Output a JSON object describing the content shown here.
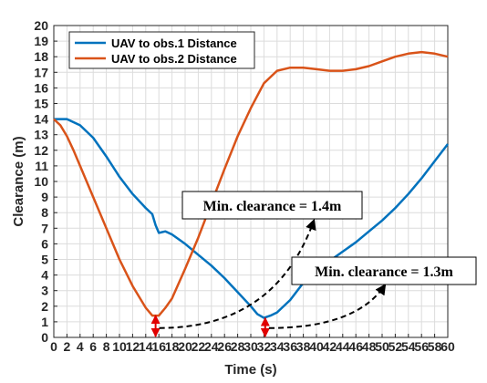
{
  "chart_data": {
    "type": "line",
    "xlabel": "Time (s)",
    "ylabel": "Clearance (m)",
    "xlim": [
      0,
      60
    ],
    "ylim": [
      0,
      20
    ],
    "xticks": [
      0,
      2,
      4,
      6,
      8,
      10,
      12,
      14,
      16,
      18,
      20,
      22,
      24,
      26,
      28,
      30,
      32,
      34,
      36,
      38,
      40,
      42,
      44,
      46,
      48,
      50,
      52,
      54,
      56,
      58,
      60
    ],
    "yticks": [
      0,
      1,
      2,
      3,
      4,
      5,
      6,
      7,
      8,
      9,
      10,
      11,
      12,
      13,
      14,
      15,
      16,
      17,
      18,
      19,
      20
    ],
    "grid": true,
    "legend_position": "top-left",
    "series": [
      {
        "name": "UAV to obs.1 Distance",
        "color": "#0072BD",
        "points": [
          [
            0,
            14
          ],
          [
            2,
            14
          ],
          [
            4,
            13.6
          ],
          [
            6,
            12.8
          ],
          [
            8,
            11.6
          ],
          [
            10,
            10.3
          ],
          [
            12,
            9.2
          ],
          [
            14,
            8.3
          ],
          [
            15,
            7.9
          ],
          [
            15.5,
            7.2
          ],
          [
            16,
            6.7
          ],
          [
            17,
            6.8
          ],
          [
            18,
            6.6
          ],
          [
            20,
            6.0
          ],
          [
            22,
            5.3
          ],
          [
            24,
            4.6
          ],
          [
            26,
            3.8
          ],
          [
            28,
            2.9
          ],
          [
            30,
            2.0
          ],
          [
            31,
            1.5
          ],
          [
            32,
            1.25
          ],
          [
            33,
            1.4
          ],
          [
            34,
            1.6
          ],
          [
            36,
            2.4
          ],
          [
            38,
            3.5
          ],
          [
            40,
            4.3
          ],
          [
            42,
            4.9
          ],
          [
            44,
            5.5
          ],
          [
            46,
            6.1
          ],
          [
            48,
            6.8
          ],
          [
            50,
            7.5
          ],
          [
            52,
            8.3
          ],
          [
            54,
            9.2
          ],
          [
            56,
            10.2
          ],
          [
            58,
            11.3
          ],
          [
            60,
            12.4
          ]
        ]
      },
      {
        "name": "UAV to obs.2 Distance",
        "color": "#D95319",
        "points": [
          [
            0,
            14
          ],
          [
            1,
            13.6
          ],
          [
            2,
            12.9
          ],
          [
            3,
            12.0
          ],
          [
            4,
            11.0
          ],
          [
            6,
            9.0
          ],
          [
            8,
            7.0
          ],
          [
            10,
            5.0
          ],
          [
            12,
            3.3
          ],
          [
            14,
            1.9
          ],
          [
            15,
            1.4
          ],
          [
            16,
            1.4
          ],
          [
            17,
            1.9
          ],
          [
            18,
            2.5
          ],
          [
            20,
            4.4
          ],
          [
            22,
            6.4
          ],
          [
            24,
            8.6
          ],
          [
            26,
            10.8
          ],
          [
            28,
            12.9
          ],
          [
            30,
            14.7
          ],
          [
            31,
            15.5
          ],
          [
            32,
            16.3
          ],
          [
            34,
            17.1
          ],
          [
            36,
            17.3
          ],
          [
            38,
            17.3
          ],
          [
            40,
            17.2
          ],
          [
            42,
            17.1
          ],
          [
            44,
            17.1
          ],
          [
            46,
            17.2
          ],
          [
            48,
            17.4
          ],
          [
            50,
            17.7
          ],
          [
            52,
            18.0
          ],
          [
            54,
            18.2
          ],
          [
            56,
            18.3
          ],
          [
            58,
            18.2
          ],
          [
            60,
            18.0
          ]
        ]
      }
    ],
    "annotations": [
      {
        "text": "Min. clearance = 1.4m",
        "marker_x": 15.5,
        "marker_value": 1.4
      },
      {
        "text": "Min. clearance = 1.3m",
        "marker_x": 32.2,
        "marker_value": 1.25
      }
    ]
  }
}
